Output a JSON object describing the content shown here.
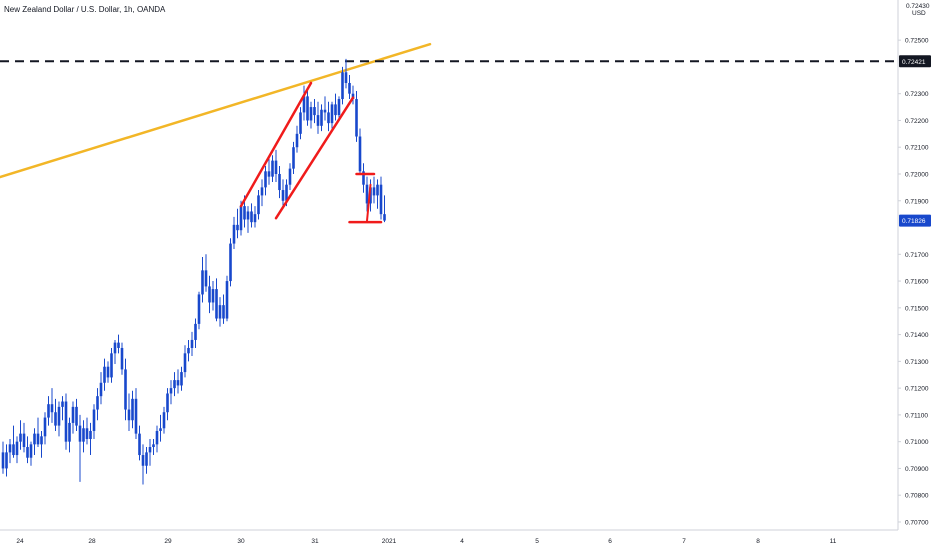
{
  "title": "New Zealand Dollar / U.S. Dollar, 1h, OANDA",
  "chart_data": {
    "type": "candlestick",
    "title": "New Zealand Dollar / U.S. Dollar, 1h, OANDA",
    "currency": "USD",
    "price_axis_top": "0.72430",
    "price_ticks": [
      "0.72500",
      "0.72300",
      "0.72200",
      "0.72100",
      "0.72000",
      "0.71900",
      "0.71700",
      "0.71600",
      "0.71500",
      "0.71400",
      "0.71300",
      "0.71200",
      "0.71100",
      "0.71000",
      "0.70900",
      "0.70800",
      "0.70700"
    ],
    "time_ticks": [
      "24",
      "28",
      "29",
      "30",
      "31",
      "2021",
      "4",
      "5",
      "6",
      "7",
      "8",
      "11"
    ],
    "ylim": [
      0.7067,
      0.7265
    ],
    "grid": false,
    "current_price": {
      "label": "0.71826",
      "value": 0.71826,
      "color": "#1848cc"
    },
    "resistance_line": {
      "label": "0.72421",
      "value": 0.72421,
      "color": "#131722"
    },
    "series_color": "#1848cc",
    "candles": [
      [
        0.7096,
        0.71,
        0.7088,
        0.709
      ],
      [
        0.709,
        0.7099,
        0.7087,
        0.7096
      ],
      [
        0.7096,
        0.7101,
        0.7092,
        0.7099
      ],
      [
        0.7099,
        0.7106,
        0.7094,
        0.7095
      ],
      [
        0.7095,
        0.7102,
        0.7092,
        0.71
      ],
      [
        0.71,
        0.7108,
        0.7097,
        0.7103
      ],
      [
        0.7103,
        0.7107,
        0.7096,
        0.7098
      ],
      [
        0.7098,
        0.7102,
        0.7092,
        0.7094
      ],
      [
        0.7094,
        0.71,
        0.7091,
        0.7099
      ],
      [
        0.7099,
        0.7105,
        0.7095,
        0.7103
      ],
      [
        0.7103,
        0.7109,
        0.7098,
        0.7099
      ],
      [
        0.7099,
        0.7104,
        0.7094,
        0.7102
      ],
      [
        0.7102,
        0.7111,
        0.7099,
        0.7109
      ],
      [
        0.7109,
        0.7117,
        0.7106,
        0.7114
      ],
      [
        0.7114,
        0.712,
        0.7107,
        0.7111
      ],
      [
        0.7111,
        0.7116,
        0.7104,
        0.7106
      ],
      [
        0.7106,
        0.7115,
        0.7102,
        0.7113
      ],
      [
        0.7113,
        0.7117,
        0.7108,
        0.7115
      ],
      [
        0.7115,
        0.7118,
        0.7097,
        0.71
      ],
      [
        0.71,
        0.7109,
        0.7096,
        0.7107
      ],
      [
        0.7107,
        0.7115,
        0.7103,
        0.7113
      ],
      [
        0.7113,
        0.7116,
        0.7104,
        0.7106
      ],
      [
        0.7106,
        0.711,
        0.7085,
        0.71
      ],
      [
        0.71,
        0.7108,
        0.7096,
        0.7105
      ],
      [
        0.7105,
        0.7109,
        0.7099,
        0.7101
      ],
      [
        0.7101,
        0.7107,
        0.7095,
        0.7104
      ],
      [
        0.7104,
        0.7114,
        0.7101,
        0.7112
      ],
      [
        0.7112,
        0.712,
        0.7108,
        0.7117
      ],
      [
        0.7117,
        0.7126,
        0.7114,
        0.7122
      ],
      [
        0.7122,
        0.7131,
        0.7119,
        0.7128
      ],
      [
        0.7128,
        0.713,
        0.7122,
        0.7124
      ],
      [
        0.7124,
        0.7135,
        0.7122,
        0.7133
      ],
      [
        0.7133,
        0.7138,
        0.7129,
        0.7137
      ],
      [
        0.7137,
        0.714,
        0.7133,
        0.7135
      ],
      [
        0.7135,
        0.7137,
        0.7125,
        0.7127
      ],
      [
        0.7127,
        0.7131,
        0.7108,
        0.7112
      ],
      [
        0.7112,
        0.7118,
        0.7104,
        0.7108
      ],
      [
        0.7108,
        0.7119,
        0.7105,
        0.7116
      ],
      [
        0.7116,
        0.712,
        0.7101,
        0.7103
      ],
      [
        0.7103,
        0.7106,
        0.7093,
        0.7095
      ],
      [
        0.7095,
        0.7099,
        0.7084,
        0.7091
      ],
      [
        0.7091,
        0.7098,
        0.7088,
        0.7096
      ],
      [
        0.7096,
        0.7101,
        0.7091,
        0.7098
      ],
      [
        0.7098,
        0.7101,
        0.7095,
        0.7099
      ],
      [
        0.7099,
        0.7106,
        0.7096,
        0.7104
      ],
      [
        0.7104,
        0.711,
        0.71,
        0.7105
      ],
      [
        0.7105,
        0.7113,
        0.7103,
        0.7111
      ],
      [
        0.7111,
        0.712,
        0.7108,
        0.7118
      ],
      [
        0.7118,
        0.7123,
        0.7114,
        0.712
      ],
      [
        0.712,
        0.7126,
        0.7117,
        0.7123
      ],
      [
        0.7123,
        0.7127,
        0.7118,
        0.7121
      ],
      [
        0.7121,
        0.7128,
        0.7119,
        0.7126
      ],
      [
        0.7126,
        0.7136,
        0.7124,
        0.7133
      ],
      [
        0.7133,
        0.7138,
        0.713,
        0.7135
      ],
      [
        0.7135,
        0.7141,
        0.7132,
        0.7138
      ],
      [
        0.7138,
        0.7146,
        0.7135,
        0.7144
      ],
      [
        0.7144,
        0.7156,
        0.7142,
        0.7155
      ],
      [
        0.7155,
        0.7169,
        0.7152,
        0.7164
      ],
      [
        0.7164,
        0.717,
        0.7156,
        0.7158
      ],
      [
        0.7158,
        0.7162,
        0.7148,
        0.7152
      ],
      [
        0.7152,
        0.716,
        0.7149,
        0.7157
      ],
      [
        0.7157,
        0.7161,
        0.7145,
        0.7146
      ],
      [
        0.7146,
        0.7154,
        0.7143,
        0.7151
      ],
      [
        0.7151,
        0.7155,
        0.7144,
        0.7146
      ],
      [
        0.7146,
        0.7162,
        0.7145,
        0.716
      ],
      [
        0.716,
        0.7176,
        0.7158,
        0.7174
      ],
      [
        0.7174,
        0.7184,
        0.7172,
        0.7181
      ],
      [
        0.7181,
        0.7187,
        0.7176,
        0.7179
      ],
      [
        0.7179,
        0.719,
        0.7177,
        0.7188
      ],
      [
        0.7188,
        0.7192,
        0.718,
        0.7183
      ],
      [
        0.7183,
        0.7188,
        0.7178,
        0.7186
      ],
      [
        0.7186,
        0.7189,
        0.718,
        0.7182
      ],
      [
        0.7182,
        0.7188,
        0.718,
        0.7185
      ],
      [
        0.7185,
        0.7194,
        0.7183,
        0.7192
      ],
      [
        0.7192,
        0.7198,
        0.7188,
        0.7195
      ],
      [
        0.7195,
        0.7203,
        0.7192,
        0.7201
      ],
      [
        0.7201,
        0.7206,
        0.7196,
        0.7199
      ],
      [
        0.7199,
        0.7207,
        0.7197,
        0.7205
      ],
      [
        0.7205,
        0.7209,
        0.7197,
        0.72
      ],
      [
        0.72,
        0.7203,
        0.7191,
        0.7194
      ],
      [
        0.7194,
        0.7198,
        0.7187,
        0.719
      ],
      [
        0.719,
        0.7198,
        0.7188,
        0.7196
      ],
      [
        0.7196,
        0.7204,
        0.7194,
        0.7202
      ],
      [
        0.7202,
        0.7212,
        0.72,
        0.721
      ],
      [
        0.721,
        0.7218,
        0.7208,
        0.7215
      ],
      [
        0.7215,
        0.7225,
        0.7213,
        0.7223
      ],
      [
        0.7223,
        0.7233,
        0.722,
        0.7229
      ],
      [
        0.7229,
        0.7231,
        0.7218,
        0.722
      ],
      [
        0.722,
        0.7227,
        0.7217,
        0.7225
      ],
      [
        0.7225,
        0.7228,
        0.7219,
        0.7222
      ],
      [
        0.7222,
        0.7227,
        0.7215,
        0.7218
      ],
      [
        0.7218,
        0.7226,
        0.7216,
        0.7224
      ],
      [
        0.7224,
        0.7229,
        0.722,
        0.7223
      ],
      [
        0.7223,
        0.7227,
        0.7216,
        0.7219
      ],
      [
        0.7219,
        0.7227,
        0.7217,
        0.7226
      ],
      [
        0.7226,
        0.723,
        0.722,
        0.7222
      ],
      [
        0.7222,
        0.7229,
        0.7221,
        0.7228
      ],
      [
        0.7228,
        0.724,
        0.7226,
        0.7238
      ],
      [
        0.7238,
        0.7243,
        0.7232,
        0.7234
      ],
      [
        0.7234,
        0.7237,
        0.7228,
        0.723
      ],
      [
        0.723,
        0.7233,
        0.7226,
        0.7228
      ],
      [
        0.7228,
        0.7231,
        0.7212,
        0.7214
      ],
      [
        0.7214,
        0.7217,
        0.72,
        0.7201
      ],
      [
        0.7201,
        0.7204,
        0.7193,
        0.7196
      ],
      [
        0.7196,
        0.7199,
        0.7186,
        0.7189
      ],
      [
        0.7189,
        0.7198,
        0.7186,
        0.7195
      ],
      [
        0.7195,
        0.7199,
        0.7189,
        0.7192
      ],
      [
        0.7192,
        0.7198,
        0.7187,
        0.7196
      ],
      [
        0.7196,
        0.7199,
        0.7183,
        0.7185
      ],
      [
        0.7185,
        0.7192,
        0.7182,
        0.71826
      ]
    ],
    "annotations": {
      "trendline_color": "#f2b627",
      "drawing_color": "#f01b1b",
      "trendline": {
        "from": [
          -2,
          0.71984
        ],
        "to": [
          122,
          0.72485
        ]
      },
      "channel_upper": {
        "from": [
          68,
          0.7188
        ],
        "to": [
          88,
          0.7234
        ]
      },
      "channel_lower": {
        "from": [
          78,
          0.71835
        ],
        "to": [
          100,
          0.72285
        ]
      },
      "flag_top": {
        "from": [
          101,
          0.72
        ],
        "to": [
          106,
          0.72
        ]
      },
      "flag_bottom": {
        "from": [
          99,
          0.7182
        ],
        "to": [
          108,
          0.7182
        ]
      },
      "flag_tick": {
        "from": [
          104,
          0.71825
        ],
        "to": [
          105,
          0.7196
        ]
      }
    }
  }
}
